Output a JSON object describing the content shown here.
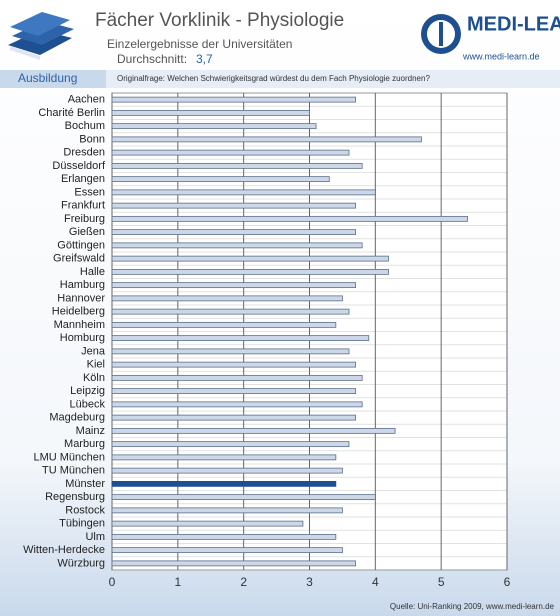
{
  "chart_data": {
    "type": "hbar",
    "title": "Fächer Vorklinik - Physiologie",
    "subtitle": "Einzelergebnisse der Universitäten",
    "average_label": "Durchschnitt:",
    "average_value": "3,7",
    "logo": "MEDI-LEARN",
    "logo_url": "www.medi-learn.de",
    "section": "Ausbildung",
    "question": "Originalfrage: Welchen Schwierigkeitsgrad würdest du dem Fach Physiologie zuordnen?",
    "source": "Quelle: Uni-Ranking 2009, www.medi-learn.de",
    "categories": [
      "Aachen",
      "Charité Berlin",
      "Bochum",
      "Bonn",
      "Dresden",
      "Düsseldorf",
      "Erlangen",
      "Essen",
      "Frankfurt",
      "Freiburg",
      "Gießen",
      "Göttingen",
      "Greifswald",
      "Halle",
      "Hamburg",
      "Hannover",
      "Heidelberg",
      "Mannheim",
      "Homburg",
      "Jena",
      "Kiel",
      "Köln",
      "Leipzig",
      "Lübeck",
      "Magdeburg",
      "Mainz",
      "Marburg",
      "LMU München",
      "TU München",
      "Münster",
      "Regensburg",
      "Rostock",
      "Tübingen",
      "Ulm",
      "Witten-Herdecke",
      "Würzburg"
    ],
    "values": [
      3.7,
      3.0,
      3.1,
      4.7,
      3.6,
      3.8,
      3.3,
      4.0,
      3.7,
      5.4,
      3.7,
      3.8,
      4.2,
      4.2,
      3.7,
      3.5,
      3.6,
      3.4,
      3.9,
      3.6,
      3.7,
      3.8,
      3.7,
      3.8,
      3.7,
      4.3,
      3.6,
      3.4,
      3.5,
      3.4,
      4.0,
      3.5,
      2.9,
      3.4,
      3.5,
      3.7
    ],
    "color": "#cdd7e6",
    "highlight": "Münster",
    "highlight_color": "#1d4f91",
    "xlim": [
      0,
      6
    ],
    "xticks": [
      0,
      1,
      2,
      3,
      4,
      5,
      6
    ],
    "grid": true
  }
}
